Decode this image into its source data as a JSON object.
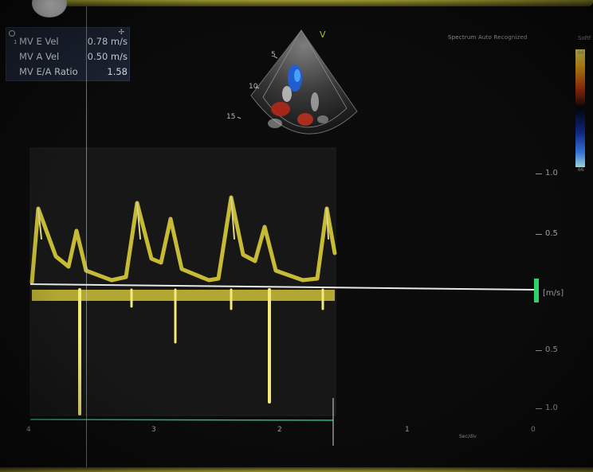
{
  "measurements": [
    {
      "label": "MV E Vel",
      "value": "0.78 m/s"
    },
    {
      "label": "MV A Vel",
      "value": "0.50 m/s"
    },
    {
      "label": "MV E/A Ratio",
      "value": "1.58"
    }
  ],
  "measurement_index": "1",
  "probe_mark": "V",
  "depth_labels": [
    "5",
    "10",
    "15"
  ],
  "status_text": "Spectrum Auto Recognized",
  "color_map_label": "Softf",
  "color_map_top": "66",
  "color_map_bottom": "66",
  "velocity_scale": {
    "labels": [
      "1.0",
      "0.5",
      "[m/s]",
      "0.5",
      "1.0"
    ],
    "unit": "[m/s]"
  },
  "time_axis": {
    "labels": [
      "4",
      "3",
      "2",
      "1",
      "0"
    ],
    "unit": "Sec/div"
  },
  "colors": {
    "doppler": "#e6d83c",
    "baseline": "#e8e8e8",
    "panel": "#1c2433",
    "timeline": "#2db38a"
  }
}
